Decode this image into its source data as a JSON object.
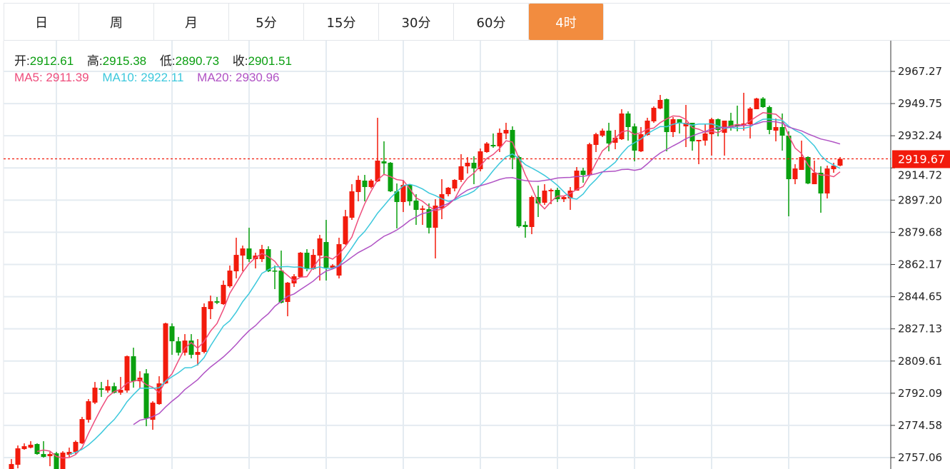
{
  "tabs": [
    {
      "label": "日",
      "active": false
    },
    {
      "label": "周",
      "active": false
    },
    {
      "label": "月",
      "active": false
    },
    {
      "label": "5分",
      "active": false
    },
    {
      "label": "15分",
      "active": false
    },
    {
      "label": "30分",
      "active": false
    },
    {
      "label": "60分",
      "active": false
    },
    {
      "label": "4时",
      "active": true
    }
  ],
  "ohlc_info": {
    "open_label": "开:",
    "open": "2912.61",
    "high_label": "高:",
    "high": "2915.38",
    "low_label": "低:",
    "low": "2890.73",
    "close_label": "收:",
    "close": "2901.51"
  },
  "ma_info": {
    "ma5_label": "MA5:",
    "ma5": "2911.39",
    "ma10_label": "MA10:",
    "ma10": "2922.11",
    "ma20_label": "MA20:",
    "ma20": "2930.96"
  },
  "colors": {
    "active_tab": "#f28c3f",
    "up": "#f21b0c",
    "down": "#0aa00f",
    "ma5": "#ee4d7c",
    "ma10": "#3cc8dc",
    "ma20": "#b052c4",
    "info_value": "#0a9e10",
    "grid": "#e4ebf1",
    "last_price": "#f21b0c"
  },
  "chart_data": {
    "type": "candlestick",
    "y_ticks": [
      "2967.27",
      "2949.75",
      "2932.24",
      "2914.72",
      "2897.20",
      "2879.68",
      "2862.17",
      "2844.65",
      "2827.13",
      "2809.61",
      "2792.09",
      "2774.58",
      "2757.06"
    ],
    "ylim": [
      2757.06,
      2967.27
    ],
    "last_price": "2919.67",
    "grid": true,
    "moving_averages": [
      5,
      10,
      20
    ],
    "ohlc": [
      [
        2749.65,
        2756.26,
        2748.88,
        2753.54
      ],
      [
        2753.15,
        2763.65,
        2751.21,
        2762.09
      ],
      [
        2761.7,
        2764.81,
        2761.31,
        2763.25
      ],
      [
        2762.48,
        2765.98,
        2762.09,
        2764.04
      ],
      [
        2764.43,
        2764.81,
        2758.6,
        2758.99
      ],
      [
        2758.99,
        2765.98,
        2757.04,
        2757.43
      ],
      [
        2757.82,
        2760.15,
        2752.37,
        2758.99
      ],
      [
        2759.37,
        2760.15,
        2747.71,
        2748.88
      ],
      [
        2748.88,
        2760.54,
        2748.1,
        2759.76
      ],
      [
        2758.6,
        2762.48,
        2757.43,
        2760.15
      ],
      [
        2760.15,
        2766.37,
        2758.99,
        2765.59
      ],
      [
        2764.81,
        2779.19,
        2764.43,
        2778.02
      ],
      [
        2777.64,
        2788.91,
        2776.08,
        2787.73
      ],
      [
        2786.96,
        2798.22,
        2786.18,
        2795.12
      ],
      [
        2794.73,
        2798.22,
        2790.07,
        2793.95
      ],
      [
        2793.56,
        2799.39,
        2792.4,
        2795.89
      ],
      [
        2795.89,
        2797.84,
        2792.01,
        2792.4
      ],
      [
        2792.4,
        2800.95,
        2791.23,
        2793.95
      ],
      [
        2793.56,
        2812.61,
        2792.4,
        2812.22
      ],
      [
        2812.22,
        2816.88,
        2795.12,
        2798.61
      ],
      [
        2798.61,
        2804.06,
        2794.73,
        2800.56
      ],
      [
        2802.89,
        2805.22,
        2774.14,
        2778.41
      ],
      [
        2777.64,
        2787.73,
        2772.2,
        2786.96
      ],
      [
        2786.18,
        2801.34,
        2785.79,
        2797.45
      ],
      [
        2797.45,
        2830.49,
        2797.06,
        2830.1
      ],
      [
        2828.53,
        2830.1,
        2813.0,
        2820.37
      ],
      [
        2820.37,
        2822.7,
        2812.61,
        2814.15
      ],
      [
        2814.15,
        2824.27,
        2812.61,
        2820.76
      ],
      [
        2820.76,
        2824.27,
        2811.06,
        2813.0
      ],
      [
        2813.0,
        2821.55,
        2807.17,
        2814.55
      ],
      [
        2814.55,
        2840.98,
        2813.78,
        2839.03
      ],
      [
        2837.87,
        2845.25,
        2832.43,
        2842.14
      ],
      [
        2842.14,
        2844.47,
        2840.59,
        2841.37
      ],
      [
        2840.59,
        2853.42,
        2840.2,
        2851.08
      ],
      [
        2850.3,
        2861.57,
        2849.53,
        2858.85
      ],
      [
        2858.46,
        2876.73,
        2854.58,
        2867.39
      ],
      [
        2867.01,
        2872.45,
        2858.46,
        2870.9
      ],
      [
        2870.9,
        2882.16,
        2863.51,
        2865.07
      ],
      [
        2865.07,
        2868.57,
        2860.02,
        2867.01
      ],
      [
        2865.07,
        2872.84,
        2863.51,
        2870.51
      ],
      [
        2870.51,
        2872.06,
        2858.07,
        2858.46
      ],
      [
        2858.85,
        2861.57,
        2848.75,
        2858.46
      ],
      [
        2858.85,
        2869.73,
        2840.98,
        2841.37
      ],
      [
        2841.76,
        2852.64,
        2833.98,
        2852.25
      ],
      [
        2851.86,
        2856.91,
        2849.92,
        2855.74
      ],
      [
        2855.35,
        2868.96,
        2854.97,
        2868.57
      ],
      [
        2868.57,
        2870.51,
        2858.46,
        2859.63
      ],
      [
        2859.63,
        2870.51,
        2859.24,
        2867.39
      ],
      [
        2867.01,
        2878.28,
        2853.42,
        2876.34
      ],
      [
        2874.39,
        2886.44,
        2853.42,
        2860.41
      ],
      [
        2860.41,
        2862.35,
        2859.63,
        2861.57
      ],
      [
        2856.13,
        2876.73,
        2854.58,
        2873.23
      ],
      [
        2873.23,
        2891.88,
        2872.84,
        2888.38
      ],
      [
        2887.6,
        2905.87,
        2886.44,
        2901.98
      ],
      [
        2901.59,
        2910.54,
        2896.54,
        2908.2
      ],
      [
        2907.82,
        2910.93,
        2896.54,
        2904.32
      ],
      [
        2904.32,
        2908.59,
        2903.54,
        2907.82
      ],
      [
        2907.43,
        2942.01,
        2907.04,
        2918.7
      ],
      [
        2918.31,
        2929.19,
        2910.93,
        2917.14
      ],
      [
        2917.53,
        2917.92,
        2901.59,
        2901.98
      ],
      [
        2901.98,
        2906.26,
        2881.78,
        2896.16
      ],
      [
        2896.16,
        2908.2,
        2890.71,
        2905.48
      ],
      [
        2905.48,
        2905.87,
        2894.21,
        2896.54
      ],
      [
        2896.93,
        2900.43,
        2883.72,
        2891.88
      ],
      [
        2891.88,
        2894.21,
        2883.72,
        2892.66
      ],
      [
        2892.27,
        2895.38,
        2879.06,
        2882.16
      ],
      [
        2882.16,
        2897.71,
        2865.46,
        2894.21
      ],
      [
        2892.66,
        2908.59,
        2886.83,
        2900.43
      ],
      [
        2900.43,
        2904.32,
        2899.26,
        2903.93
      ],
      [
        2903.54,
        2908.59,
        2901.98,
        2908.2
      ],
      [
        2908.2,
        2922.19,
        2907.04,
        2915.59
      ],
      [
        2915.59,
        2920.64,
        2911.7,
        2917.53
      ],
      [
        2917.53,
        2921.03,
        2905.87,
        2914.42
      ],
      [
        2914.03,
        2925.3,
        2912.87,
        2923.75
      ],
      [
        2923.36,
        2928.8,
        2922.97,
        2928.02
      ],
      [
        2927.24,
        2933.46,
        2925.69,
        2926.47
      ],
      [
        2926.47,
        2936.18,
        2923.36,
        2933.85
      ],
      [
        2933.46,
        2939.29,
        2930.36,
        2935.4
      ],
      [
        2935.4,
        2937.35,
        2914.03,
        2920.25
      ],
      [
        2920.64,
        2921.42,
        2882.16,
        2882.95
      ],
      [
        2883.72,
        2885.67,
        2876.73,
        2882.56
      ],
      [
        2882.56,
        2899.65,
        2878.67,
        2898.88
      ],
      [
        2898.88,
        2905.09,
        2888.0,
        2895.38
      ],
      [
        2895.77,
        2905.87,
        2894.6,
        2902.37
      ],
      [
        2901.98,
        2903.54,
        2894.99,
        2902.76
      ],
      [
        2902.76,
        2903.93,
        2896.16,
        2897.71
      ],
      [
        2897.71,
        2899.26,
        2896.16,
        2898.88
      ],
      [
        2898.1,
        2904.32,
        2891.88,
        2902.37
      ],
      [
        2902.37,
        2915.2,
        2902.37,
        2913.25
      ],
      [
        2913.25,
        2914.81,
        2906.65,
        2910.93
      ],
      [
        2910.93,
        2928.41,
        2910.15,
        2927.63
      ],
      [
        2927.24,
        2933.85,
        2923.36,
        2933.07
      ],
      [
        2932.3,
        2936.18,
        2931.52,
        2935.01
      ],
      [
        2935.01,
        2939.29,
        2923.75,
        2928.02
      ],
      [
        2928.41,
        2935.4,
        2924.91,
        2931.13
      ],
      [
        2930.36,
        2946.68,
        2929.97,
        2944.34
      ],
      [
        2944.34,
        2945.51,
        2929.58,
        2936.96
      ],
      [
        2937.35,
        2938.9,
        2918.31,
        2924.14
      ],
      [
        2923.75,
        2936.96,
        2923.36,
        2933.07
      ],
      [
        2932.69,
        2942.01,
        2932.3,
        2940.46
      ],
      [
        2940.07,
        2948.23,
        2939.29,
        2947.45
      ],
      [
        2947.06,
        2954.45,
        2946.68,
        2951.73
      ],
      [
        2952.12,
        2952.51,
        2923.75,
        2934.24
      ],
      [
        2934.24,
        2942.4,
        2931.52,
        2941.23
      ],
      [
        2941.23,
        2941.23,
        2933.46,
        2939.29
      ],
      [
        2937.35,
        2949.01,
        2926.08,
        2939.29
      ],
      [
        2939.29,
        2939.29,
        2924.14,
        2929.19
      ],
      [
        2929.19,
        2929.97,
        2916.75,
        2929.97
      ],
      [
        2929.58,
        2938.51,
        2926.86,
        2933.46
      ],
      [
        2933.07,
        2942.01,
        2921.42,
        2941.23
      ],
      [
        2941.23,
        2941.62,
        2931.91,
        2935.4
      ],
      [
        2933.85,
        2940.46,
        2921.42,
        2940.46
      ],
      [
        2940.46,
        2944.73,
        2935.01,
        2937.35
      ],
      [
        2938.12,
        2948.62,
        2934.63,
        2937.74
      ],
      [
        2938.12,
        2955.61,
        2935.01,
        2938.9
      ],
      [
        2938.51,
        2947.84,
        2930.75,
        2947.06
      ],
      [
        2946.68,
        2952.9,
        2946.68,
        2952.51
      ],
      [
        2952.51,
        2953.28,
        2947.45,
        2947.84
      ],
      [
        2947.84,
        2948.62,
        2933.07,
        2935.4
      ],
      [
        2935.01,
        2941.62,
        2929.19,
        2936.96
      ],
      [
        2936.96,
        2944.34,
        2924.14,
        2932.3
      ],
      [
        2932.3,
        2934.63,
        2888.39,
        2908.59
      ],
      [
        2908.59,
        2916.75,
        2905.87,
        2914.42
      ],
      [
        2913.64,
        2929.58,
        2913.64,
        2920.64
      ],
      [
        2920.64,
        2921.03,
        2905.87,
        2906.26
      ],
      [
        2905.87,
        2918.7,
        2905.87,
        2912.09
      ],
      [
        2912.09,
        2915.59,
        2890.33,
        2900.82
      ],
      [
        2900.82,
        2915.98,
        2898.1,
        2914.42
      ],
      [
        2914.03,
        2917.53,
        2912.09,
        2915.98
      ],
      [
        2915.98,
        2920.64,
        2915.59,
        2919.67
      ]
    ]
  }
}
